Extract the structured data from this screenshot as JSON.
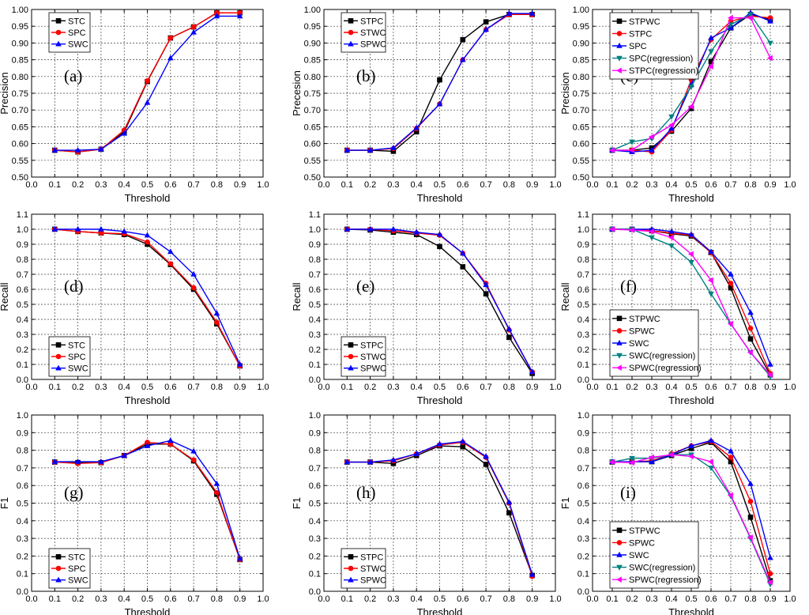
{
  "chart_data": [
    {
      "type": "line",
      "panel": "(a)",
      "xlabel": "Threshold",
      "ylabel": "Precision",
      "xlim": [
        0,
        1
      ],
      "ylim": [
        0.5,
        1
      ],
      "xticks": [
        "0.0",
        "0.1",
        "0.2",
        "0.3",
        "0.4",
        "0.5",
        "0.6",
        "0.7",
        "0.8",
        "0.9",
        "1.0"
      ],
      "yticks": [
        "0.50",
        "0.55",
        "0.60",
        "0.65",
        "0.70",
        "0.75",
        "0.80",
        "0.85",
        "0.90",
        "0.95",
        "1.00"
      ],
      "grid": true,
      "legend": "top-left",
      "x": [
        0.1,
        0.2,
        0.3,
        0.4,
        0.5,
        0.6,
        0.7,
        0.8,
        0.9
      ],
      "series": [
        {
          "name": "STC",
          "color": "#000000",
          "marker": "square",
          "values": [
            0.58,
            0.575,
            0.583,
            0.635,
            0.785,
            0.915,
            0.948,
            0.99,
            0.99
          ]
        },
        {
          "name": "SPC",
          "color": "#ff0000",
          "marker": "dot",
          "values": [
            0.58,
            0.575,
            0.583,
            0.64,
            0.787,
            0.915,
            0.948,
            0.99,
            0.99
          ]
        },
        {
          "name": "SWC",
          "color": "#0000ff",
          "marker": "triangle",
          "values": [
            0.58,
            0.58,
            0.583,
            0.63,
            0.722,
            0.855,
            0.932,
            0.98,
            0.98
          ]
        }
      ]
    },
    {
      "type": "line",
      "panel": "(b)",
      "xlabel": "Threshold",
      "ylabel": "Precesion",
      "xlim": [
        0,
        1
      ],
      "ylim": [
        0.5,
        1
      ],
      "xticks": [
        "0.0",
        "0.1",
        "0.2",
        "0.3",
        "0.4",
        "0.5",
        "0.6",
        "0.7",
        "0.8",
        "0.9",
        "1.0"
      ],
      "yticks": [
        "0.50",
        "0.55",
        "0.60",
        "0.65",
        "0.70",
        "0.75",
        "0.80",
        "0.85",
        "0.90",
        "0.95",
        "1.00"
      ],
      "grid": true,
      "legend": "top-left",
      "x": [
        0.1,
        0.2,
        0.3,
        0.4,
        0.5,
        0.6,
        0.7,
        0.8,
        0.9
      ],
      "series": [
        {
          "name": "STPC",
          "color": "#000000",
          "marker": "square",
          "values": [
            0.58,
            0.58,
            0.577,
            0.635,
            0.79,
            0.91,
            0.963,
            0.985,
            0.985
          ]
        },
        {
          "name": "STWC",
          "color": "#ff0000",
          "marker": "dot",
          "values": [
            0.58,
            0.58,
            0.585,
            0.645,
            0.718,
            0.85,
            0.94,
            0.985,
            0.985
          ]
        },
        {
          "name": "SPWC",
          "color": "#0000ff",
          "marker": "triangle",
          "values": [
            0.58,
            0.58,
            0.587,
            0.647,
            0.718,
            0.85,
            0.94,
            0.988,
            0.988
          ]
        }
      ]
    },
    {
      "type": "line",
      "panel": "(c)",
      "xlabel": "Threshold",
      "ylabel": "Precision",
      "xlim": [
        0,
        1
      ],
      "ylim": [
        0.5,
        1
      ],
      "xticks": [
        "0.0",
        "0.1",
        "0.2",
        "0.3",
        "0.4",
        "0.5",
        "0.6",
        "0.7",
        "0.8",
        "0.9",
        "1.0"
      ],
      "yticks": [
        "0.50",
        "0.55",
        "0.60",
        "0.65",
        "0.70",
        "0.75",
        "0.80",
        "0.85",
        "0.90",
        "0.95",
        "1.00"
      ],
      "grid": true,
      "legend": "top-left",
      "x": [
        0.1,
        0.2,
        0.3,
        0.4,
        0.5,
        0.6,
        0.7,
        0.8,
        0.9
      ],
      "series": [
        {
          "name": "STPWC",
          "color": "#000000",
          "marker": "square",
          "values": [
            0.58,
            0.58,
            0.587,
            0.637,
            0.705,
            0.845,
            0.945,
            0.985,
            0.97
          ]
        },
        {
          "name": "STPC",
          "color": "#ff0000",
          "marker": "dot",
          "values": [
            0.58,
            0.58,
            0.575,
            0.64,
            0.79,
            0.91,
            0.965,
            0.98,
            0.975
          ]
        },
        {
          "name": "SPC",
          "color": "#0000ff",
          "marker": "triangle",
          "values": [
            0.58,
            0.575,
            0.58,
            0.645,
            0.775,
            0.915,
            0.945,
            0.99,
            0.965
          ]
        },
        {
          "name": "SPC(regression)",
          "color": "#008080",
          "marker": "tridown",
          "values": [
            0.58,
            0.605,
            0.615,
            0.68,
            0.77,
            0.875,
            0.955,
            0.985,
            0.9
          ]
        },
        {
          "name": "STPC(regression)",
          "color": "#ff00ff",
          "marker": "tri-left",
          "values": [
            0.58,
            0.58,
            0.62,
            0.655,
            0.71,
            0.83,
            0.975,
            0.975,
            0.855
          ]
        }
      ]
    },
    {
      "type": "line",
      "panel": "(d)",
      "xlabel": "Threshold",
      "ylabel": "Recall",
      "xlim": [
        0,
        1
      ],
      "ylim": [
        0,
        1.1
      ],
      "xticks": [
        "0.0",
        "0.1",
        "0.2",
        "0.3",
        "0.4",
        "0.5",
        "0.6",
        "0.7",
        "0.8",
        "0.9",
        "1.0"
      ],
      "yticks": [
        "0.0",
        "0.1",
        "0.2",
        "0.3",
        "0.4",
        "0.5",
        "0.6",
        "0.7",
        "0.8",
        "0.9",
        "1.0",
        "1.1"
      ],
      "grid": true,
      "legend": "bottom-left",
      "x": [
        0.1,
        0.2,
        0.3,
        0.4,
        0.5,
        0.6,
        0.7,
        0.8,
        0.9
      ],
      "series": [
        {
          "name": "STC",
          "color": "#000000",
          "marker": "square",
          "values": [
            1.0,
            0.985,
            0.975,
            0.965,
            0.9,
            0.765,
            0.6,
            0.37,
            0.09
          ]
        },
        {
          "name": "SPC",
          "color": "#ff0000",
          "marker": "dot",
          "values": [
            1.0,
            0.985,
            0.975,
            0.97,
            0.915,
            0.77,
            0.61,
            0.38,
            0.09
          ]
        },
        {
          "name": "SWC",
          "color": "#0000ff",
          "marker": "triangle",
          "values": [
            1.0,
            1.0,
            1.0,
            0.985,
            0.96,
            0.85,
            0.7,
            0.44,
            0.1
          ]
        }
      ]
    },
    {
      "type": "line",
      "panel": "(e)",
      "xlabel": "Threshold",
      "ylabel": "Recall",
      "xlim": [
        0,
        1
      ],
      "ylim": [
        0,
        1.1
      ],
      "xticks": [
        "0.0",
        "0.1",
        "0.2",
        "0.3",
        "0.4",
        "0.5",
        "0.6",
        "0.7",
        "0.8",
        "0.9",
        "1.0"
      ],
      "yticks": [
        "0.0",
        "0.1",
        "0.2",
        "0.3",
        "0.4",
        "0.5",
        "0.6",
        "0.7",
        "0.8",
        "0.9",
        "1.0",
        "1.1"
      ],
      "grid": true,
      "legend": "bottom-left",
      "x": [
        0.1,
        0.2,
        0.3,
        0.4,
        0.5,
        0.6,
        0.7,
        0.8,
        0.9
      ],
      "series": [
        {
          "name": "STPC",
          "color": "#000000",
          "marker": "square",
          "values": [
            1.0,
            0.995,
            0.98,
            0.965,
            0.885,
            0.75,
            0.57,
            0.28,
            0.04
          ]
        },
        {
          "name": "STWC",
          "color": "#ff0000",
          "marker": "dot",
          "values": [
            1.0,
            1.0,
            0.99,
            0.975,
            0.96,
            0.84,
            0.64,
            0.33,
            0.05
          ]
        },
        {
          "name": "SPWC",
          "color": "#0000ff",
          "marker": "triangle",
          "values": [
            1.0,
            1.0,
            1.0,
            0.98,
            0.965,
            0.84,
            0.63,
            0.335,
            0.05
          ]
        }
      ]
    },
    {
      "type": "line",
      "panel": "(f)",
      "xlabel": "Threshold",
      "ylabel": "Recall",
      "xlim": [
        0,
        1
      ],
      "ylim": [
        0,
        1.1
      ],
      "xticks": [
        "0.0",
        "0.1",
        "0.2",
        "0.3",
        "0.4",
        "0.5",
        "0.6",
        "0.7",
        "0.8",
        "0.9",
        "1.0"
      ],
      "yticks": [
        "0.0",
        "0.1",
        "0.2",
        "0.3",
        "0.4",
        "0.5",
        "0.6",
        "0.7",
        "0.8",
        "0.9",
        "1.0",
        "1.1"
      ],
      "grid": true,
      "legend": "bottom-left",
      "x": [
        0.1,
        0.2,
        0.3,
        0.4,
        0.5,
        0.6,
        0.7,
        0.8,
        0.9
      ],
      "series": [
        {
          "name": "STPWC",
          "color": "#000000",
          "marker": "square",
          "values": [
            1.0,
            1.0,
            0.99,
            0.97,
            0.955,
            0.845,
            0.61,
            0.27,
            0.03
          ]
        },
        {
          "name": "SPWC",
          "color": "#ff0000",
          "marker": "dot",
          "values": [
            1.0,
            1.0,
            0.99,
            0.975,
            0.96,
            0.845,
            0.64,
            0.34,
            0.04
          ]
        },
        {
          "name": "SWC",
          "color": "#0000ff",
          "marker": "triangle",
          "values": [
            1.0,
            1.0,
            1.0,
            0.985,
            0.965,
            0.85,
            0.7,
            0.445,
            0.1
          ]
        },
        {
          "name": "SWC(regression)",
          "color": "#008080",
          "marker": "tridown",
          "values": [
            1.0,
            1.0,
            0.945,
            0.89,
            0.78,
            0.57,
            0.37,
            0.18,
            0.02
          ]
        },
        {
          "name": "SPWC(regression)",
          "color": "#ff00ff",
          "marker": "tri-left",
          "values": [
            1.0,
            0.995,
            0.985,
            0.945,
            0.835,
            0.66,
            0.37,
            0.18,
            0.03
          ]
        }
      ]
    },
    {
      "type": "line",
      "panel": "(g)",
      "xlabel": "Threshold",
      "ylabel": "F1",
      "xlim": [
        0,
        1
      ],
      "ylim": [
        0,
        1
      ],
      "xticks": [
        "0.0",
        "0.1",
        "0.2",
        "0.3",
        "0.4",
        "0.5",
        "0.6",
        "0.7",
        "0.8",
        "0.9",
        "1.0"
      ],
      "yticks": [
        "0.0",
        "0.1",
        "0.2",
        "0.3",
        "0.4",
        "0.5",
        "0.6",
        "0.7",
        "0.8",
        "0.9",
        "1.0"
      ],
      "grid": true,
      "legend": "bottom-left",
      "x": [
        0.1,
        0.2,
        0.3,
        0.4,
        0.5,
        0.6,
        0.7,
        0.8,
        0.9
      ],
      "series": [
        {
          "name": "STC",
          "color": "#000000",
          "marker": "square",
          "values": [
            0.733,
            0.73,
            0.73,
            0.77,
            0.835,
            0.835,
            0.74,
            0.55,
            0.18
          ]
        },
        {
          "name": "SPC",
          "color": "#ff0000",
          "marker": "dot",
          "values": [
            0.733,
            0.725,
            0.73,
            0.77,
            0.845,
            0.835,
            0.745,
            0.56,
            0.18
          ]
        },
        {
          "name": "SWC",
          "color": "#0000ff",
          "marker": "triangle",
          "values": [
            0.735,
            0.735,
            0.735,
            0.77,
            0.825,
            0.855,
            0.795,
            0.61,
            0.185
          ]
        }
      ]
    },
    {
      "type": "line",
      "panel": "(h)",
      "xlabel": "Threshold",
      "ylabel": "F1",
      "xlim": [
        0,
        1
      ],
      "ylim": [
        0,
        1
      ],
      "xticks": [
        "0.0",
        "0.1",
        "0.2",
        "0.3",
        "0.4",
        "0.5",
        "0.6",
        "0.7",
        "0.8",
        "0.9",
        "1.0"
      ],
      "yticks": [
        "0.0",
        "0.1",
        "0.2",
        "0.3",
        "0.4",
        "0.5",
        "0.6",
        "0.7",
        "0.8",
        "0.9",
        "1.0"
      ],
      "grid": true,
      "legend": "bottom-left",
      "x": [
        0.1,
        0.2,
        0.3,
        0.4,
        0.5,
        0.6,
        0.7,
        0.8,
        0.9
      ],
      "series": [
        {
          "name": "STPC",
          "color": "#000000",
          "marker": "square",
          "values": [
            0.733,
            0.733,
            0.725,
            0.77,
            0.825,
            0.82,
            0.72,
            0.445,
            0.09
          ]
        },
        {
          "name": "STWC",
          "color": "#ff0000",
          "marker": "dot",
          "values": [
            0.733,
            0.733,
            0.74,
            0.78,
            0.83,
            0.845,
            0.76,
            0.5,
            0.085
          ]
        },
        {
          "name": "SPWC",
          "color": "#0000ff",
          "marker": "triangle",
          "values": [
            0.733,
            0.733,
            0.745,
            0.78,
            0.835,
            0.85,
            0.765,
            0.505,
            0.095
          ]
        }
      ]
    },
    {
      "type": "line",
      "panel": "(i)",
      "xlabel": "Threshold",
      "ylabel": "F1",
      "xlim": [
        0,
        1
      ],
      "ylim": [
        0,
        1
      ],
      "xticks": [
        "0.0",
        "0.1",
        "0.2",
        "0.3",
        "0.4",
        "0.5",
        "0.6",
        "0.7",
        "0.8",
        "0.9",
        "1.0"
      ],
      "yticks": [
        "0.0",
        "0.1",
        "0.2",
        "0.3",
        "0.4",
        "0.5",
        "0.6",
        "0.7",
        "0.8",
        "0.9",
        "1.0"
      ],
      "grid": true,
      "legend": "bottom-left",
      "x": [
        0.1,
        0.2,
        0.3,
        0.4,
        0.5,
        0.6,
        0.7,
        0.8,
        0.9
      ],
      "series": [
        {
          "name": "STPWC",
          "color": "#000000",
          "marker": "square",
          "values": [
            0.733,
            0.735,
            0.735,
            0.77,
            0.81,
            0.845,
            0.735,
            0.42,
            0.06
          ]
        },
        {
          "name": "SPWC",
          "color": "#ff0000",
          "marker": "dot",
          "values": [
            0.733,
            0.735,
            0.74,
            0.78,
            0.825,
            0.85,
            0.76,
            0.51,
            0.1
          ]
        },
        {
          "name": "SWC",
          "color": "#0000ff",
          "marker": "triangle",
          "values": [
            0.735,
            0.735,
            0.735,
            0.775,
            0.825,
            0.855,
            0.795,
            0.61,
            0.19
          ]
        },
        {
          "name": "SWC(regression)",
          "color": "#008080",
          "marker": "tridown",
          "values": [
            0.733,
            0.755,
            0.755,
            0.775,
            0.775,
            0.7,
            0.54,
            0.3,
            0.04
          ]
        },
        {
          "name": "SPWC(regression)",
          "color": "#ff00ff",
          "marker": "tri-left",
          "values": [
            0.733,
            0.73,
            0.76,
            0.775,
            0.765,
            0.735,
            0.545,
            0.305,
            0.05
          ]
        }
      ]
    }
  ]
}
